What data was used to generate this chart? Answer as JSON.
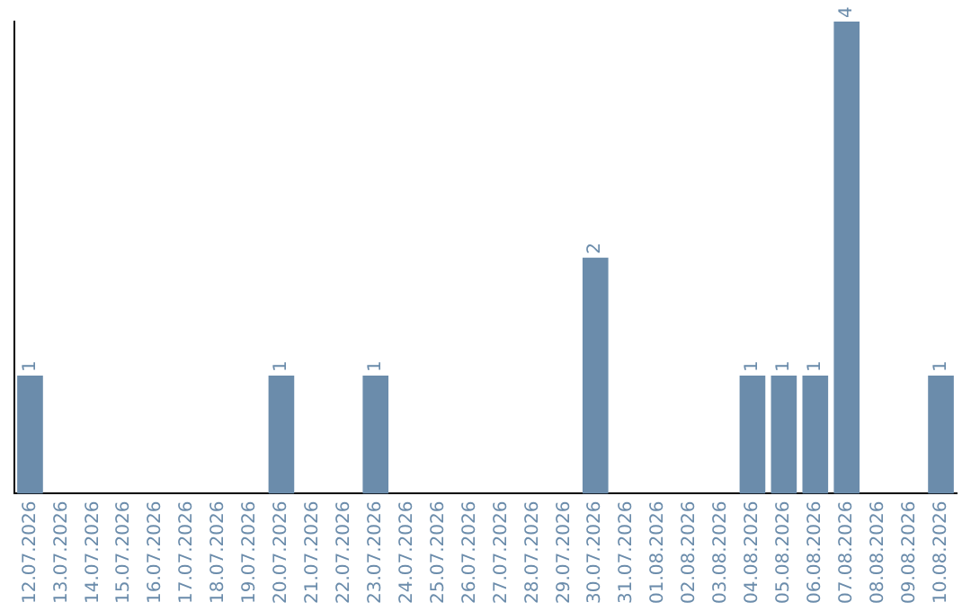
{
  "chart_data": {
    "type": "bar",
    "categories": [
      "12.07.2026",
      "13.07.2026",
      "14.07.2026",
      "15.07.2026",
      "16.07.2026",
      "17.07.2026",
      "18.07.2026",
      "19.07.2026",
      "20.07.2026",
      "21.07.2026",
      "22.07.2026",
      "23.07.2026",
      "24.07.2026",
      "25.07.2026",
      "26.07.2026",
      "27.07.2026",
      "28.07.2026",
      "29.07.2026",
      "30.07.2026",
      "31.07.2026",
      "01.08.2026",
      "02.08.2026",
      "03.08.2026",
      "04.08.2026",
      "05.08.2026",
      "06.08.2026",
      "07.08.2026",
      "08.08.2026",
      "09.08.2026",
      "10.08.2026"
    ],
    "values": [
      1,
      0,
      0,
      0,
      0,
      0,
      0,
      0,
      1,
      0,
      0,
      1,
      0,
      0,
      0,
      0,
      0,
      0,
      2,
      0,
      0,
      0,
      0,
      1,
      1,
      1,
      4,
      0,
      0,
      1
    ],
    "value_labels": [
      "1",
      null,
      null,
      null,
      null,
      null,
      null,
      null,
      "1",
      null,
      null,
      "1",
      null,
      null,
      null,
      null,
      null,
      null,
      "2",
      null,
      null,
      null,
      null,
      "1",
      "1",
      "1",
      "4",
      null,
      null,
      "1"
    ],
    "color": "#6b8cab",
    "relative": false,
    "grid": false,
    "legend": false,
    "tick_labels": "x"
  }
}
